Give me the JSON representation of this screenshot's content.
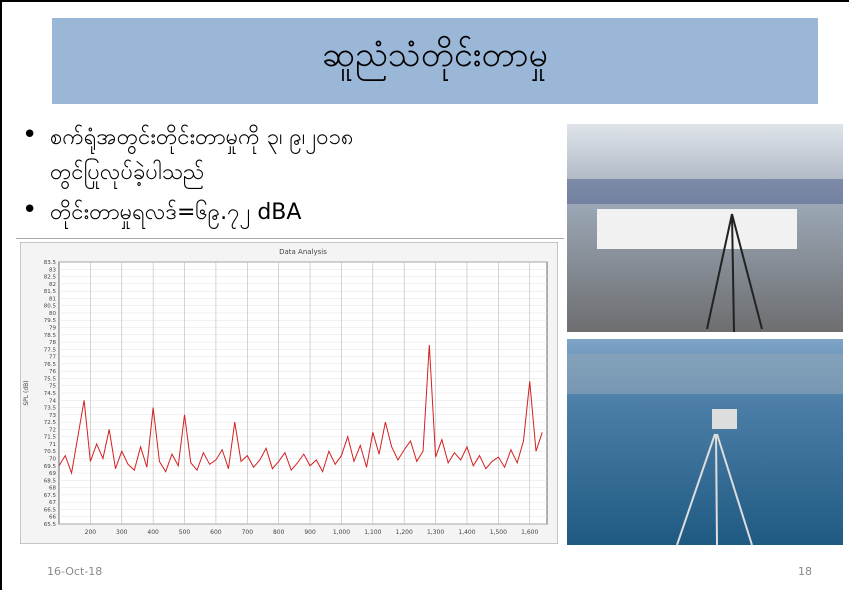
{
  "title": "ဆူညံသံတိုင်းတာမှု",
  "bullets": [
    [
      "စက်ရုံအတွင်းတိုင်းတာမှုကို ၃၊ ၉၊၂၀၁၈",
      "တွင်ပြုလုပ်ခဲ့ပါသည်"
    ],
    [
      "တိုင်းတာမှုရလဒ်=၆၉.၇၂ dBA"
    ]
  ],
  "footer": {
    "date": "16-Oct-18",
    "page": "18"
  },
  "chart_data": {
    "type": "line",
    "title": "Data Analysis",
    "y_label": "SPL (dB)",
    "x": [
      100,
      120,
      140,
      160,
      180,
      200,
      220,
      240,
      260,
      280,
      300,
      320,
      340,
      360,
      380,
      400,
      420,
      440,
      460,
      480,
      500,
      520,
      540,
      560,
      580,
      600,
      620,
      640,
      660,
      680,
      700,
      720,
      740,
      760,
      780,
      800,
      820,
      840,
      860,
      880,
      900,
      920,
      940,
      960,
      980,
      1000,
      1020,
      1040,
      1060,
      1080,
      1100,
      1120,
      1140,
      1160,
      1180,
      1200,
      1220,
      1240,
      1260,
      1280,
      1300,
      1320,
      1340,
      1360,
      1380,
      1400,
      1420,
      1440,
      1460,
      1480,
      1500,
      1520,
      1540,
      1560,
      1580,
      1600,
      1620,
      1640
    ],
    "series": [
      {
        "name": "SPL",
        "color": "#d42020",
        "values": [
          69.5,
          70.2,
          69,
          71.5,
          74,
          69.8,
          71,
          70,
          72,
          69.3,
          70.5,
          69.6,
          69.2,
          70.8,
          69.4,
          73.5,
          69.8,
          69.1,
          70.3,
          69.5,
          73,
          69.7,
          69.2,
          70.4,
          69.6,
          69.9,
          70.6,
          69.3,
          72.5,
          69.8,
          70.2,
          69.4,
          69.9,
          70.7,
          69.3,
          69.8,
          70.4,
          69.2,
          69.7,
          70.3,
          69.5,
          69.9,
          69.1,
          70.5,
          69.6,
          70.2,
          71.5,
          69.8,
          70.9,
          69.4,
          71.8,
          70.3,
          72.5,
          70.8,
          69.9,
          70.6,
          71.2,
          69.8,
          70.5,
          77.8,
          70.1,
          71.3,
          69.7,
          70.4,
          69.9,
          70.8,
          69.5,
          70.2,
          69.3,
          69.8,
          70.1,
          69.4,
          70.6,
          69.7,
          71.2,
          75.3,
          70.5,
          71.8
        ]
      }
    ],
    "xlim": [
      100,
      1655
    ],
    "ylim": [
      65.5,
      83.5
    ],
    "xticks": [
      200,
      300,
      400,
      500,
      600,
      700,
      800,
      900,
      {
        "value": 1000,
        "label": "1,000"
      },
      {
        "value": 1100,
        "label": "1,100"
      },
      {
        "value": 1200,
        "label": "1,200"
      },
      {
        "value": 1300,
        "label": "1,300"
      },
      {
        "value": 1400,
        "label": "1,400"
      },
      {
        "value": 1500,
        "label": "1,500"
      },
      {
        "value": 1600,
        "label": "1,600"
      }
    ],
    "yticks": [
      65.5,
      66,
      66.5,
      67,
      67.5,
      68,
      68.5,
      69,
      69.5,
      70,
      70.5,
      71,
      71.5,
      72,
      72.5,
      73,
      73.5,
      74,
      74.5,
      75,
      75.5,
      76,
      76.5,
      77,
      77.5,
      78,
      78.5,
      79,
      79.5,
      80,
      80.5,
      81,
      81.5,
      82,
      82.5,
      83,
      83.5
    ],
    "grid": true
  }
}
